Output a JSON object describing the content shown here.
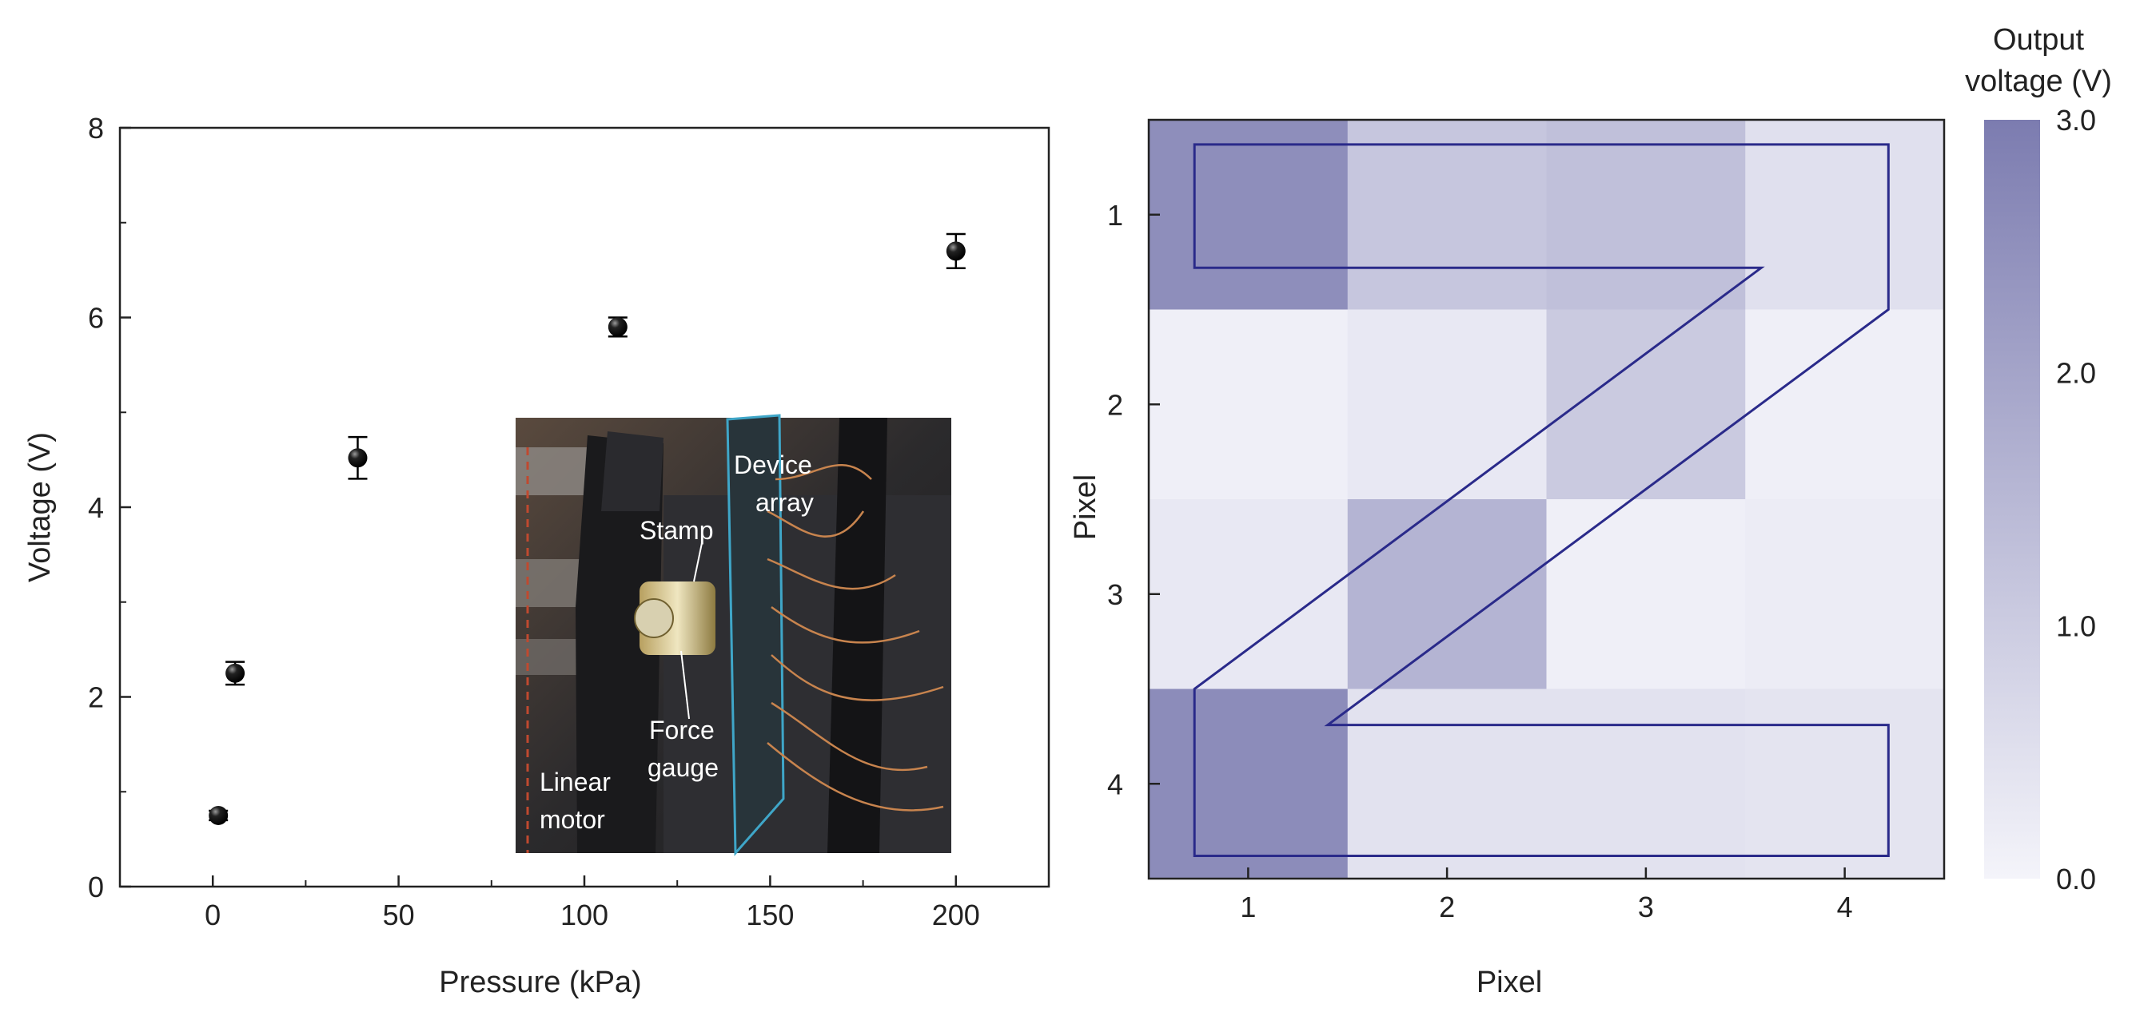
{
  "chart_data": [
    {
      "type": "scatter",
      "xlabel": "Pressure (kPa)",
      "ylabel": "Voltage (V)",
      "xlim": [
        -25,
        225
      ],
      "ylim": [
        0,
        8
      ],
      "xticks": [
        0,
        50,
        100,
        150,
        200
      ],
      "xtick_labels": [
        "0",
        "50",
        "100",
        "150",
        "200"
      ],
      "yticks": [
        0,
        2,
        4,
        6,
        8
      ],
      "ytick_labels": [
        "0",
        "2",
        "4",
        "6",
        "8"
      ],
      "grid": false,
      "points": [
        {
          "x": 1.5,
          "y": 0.75,
          "err": 0.05
        },
        {
          "x": 6,
          "y": 2.25,
          "err": 0.12
        },
        {
          "x": 39,
          "y": 4.52,
          "err": 0.22
        },
        {
          "x": 109,
          "y": 5.9,
          "err": 0.1
        },
        {
          "x": 200,
          "y": 6.7,
          "err": 0.18
        }
      ],
      "inset": {
        "labels": [
          "Device array",
          "Stamp",
          "Force gauge",
          "Linear motor"
        ]
      }
    },
    {
      "type": "heatmap",
      "xlabel": "Pixel",
      "ylabel": "Pixel",
      "xticks": [
        1,
        2,
        3,
        4
      ],
      "yticks": [
        1,
        2,
        3,
        4
      ],
      "tick_labels": [
        "1",
        "2",
        "3",
        "4"
      ],
      "rows": [
        [
          2.55,
          1.15,
          1.3,
          0.5
        ],
        [
          0.12,
          0.3,
          1.05,
          0.12
        ],
        [
          0.3,
          1.6,
          0.12,
          0.2
        ],
        [
          2.6,
          0.45,
          0.45,
          0.4
        ]
      ],
      "colorbar": {
        "title_line1": "Output",
        "title_line2": "voltage (V)",
        "min": 0,
        "max": 3,
        "tick_labels": [
          "3.0",
          "2.0",
          "1.0",
          "0.0"
        ],
        "color_low": "#f4f4fa",
        "color_high": "#7c7cb0"
      },
      "outline_color": "#2a2a8a",
      "outline_shape": "Z"
    }
  ]
}
